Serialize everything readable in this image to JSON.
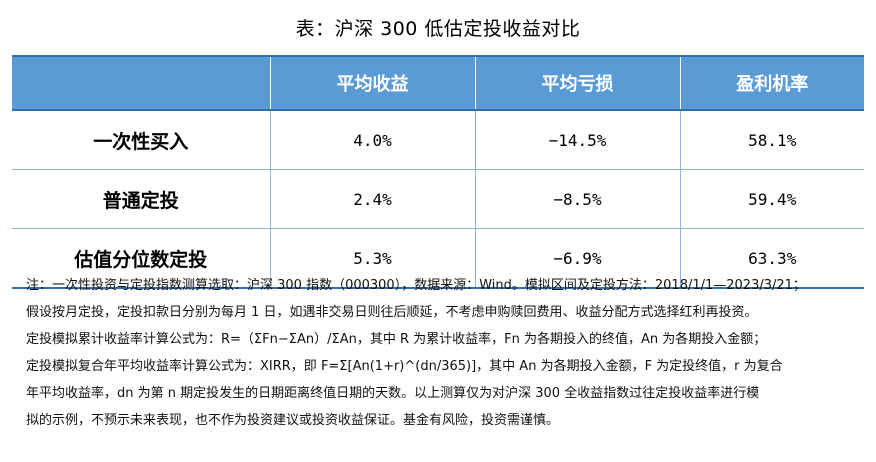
{
  "title": "表：沪深 300 低估定投收益对比",
  "table": {
    "headers": [
      "",
      "平均收益",
      "平均亏损",
      "盈利机率"
    ],
    "rows": [
      {
        "label": "一次性买入",
        "avg_gain": "4.0%",
        "avg_loss": "−14.5%",
        "win_rate": "58.1%"
      },
      {
        "label": "普通定投",
        "avg_gain": "2.4%",
        "avg_loss": "−8.5%",
        "win_rate": "59.4%"
      },
      {
        "label": "估值分位数定投",
        "avg_gain": "5.3%",
        "avg_loss": "−6.9%",
        "win_rate": "63.3%"
      }
    ]
  },
  "note": {
    "lines": [
      "注：一次性投资与定投指数测算选取：沪深 300 指数（000300），数据来源：Wind。模拟区间及定投方法：2018/1/1—2023/3/21；",
      "假设按月定投，定投扣款日分别为每月 1 日，如遇非交易日则往后顺延，不考虑申购赎回费用、收益分配方式选择红利再投资。",
      "定投模拟累计收益率计算公式为：R=（ΣFn−ΣAn）/ΣAn，其中 R 为累计收益率，Fn 为各期投入的终值，An 为各期投入金额；",
      "定投模拟复合年平均收益率计算公式为：XIRR，即 F=Σ[An(1+r)^(dn/365)]，其中 An 为各期投入金额，F 为定投终值，r 为复合",
      "年平均收益率，dn 为第 n 期定投发生的日期距离终值日期的天数。以上测算仅为对沪深 300 全收益指数过往定投收益率进行模",
      "拟的示例，不预示未来表现，也不作为投资建议或投资收益保证。基金有风险，投资需谨慎。"
    ]
  }
}
